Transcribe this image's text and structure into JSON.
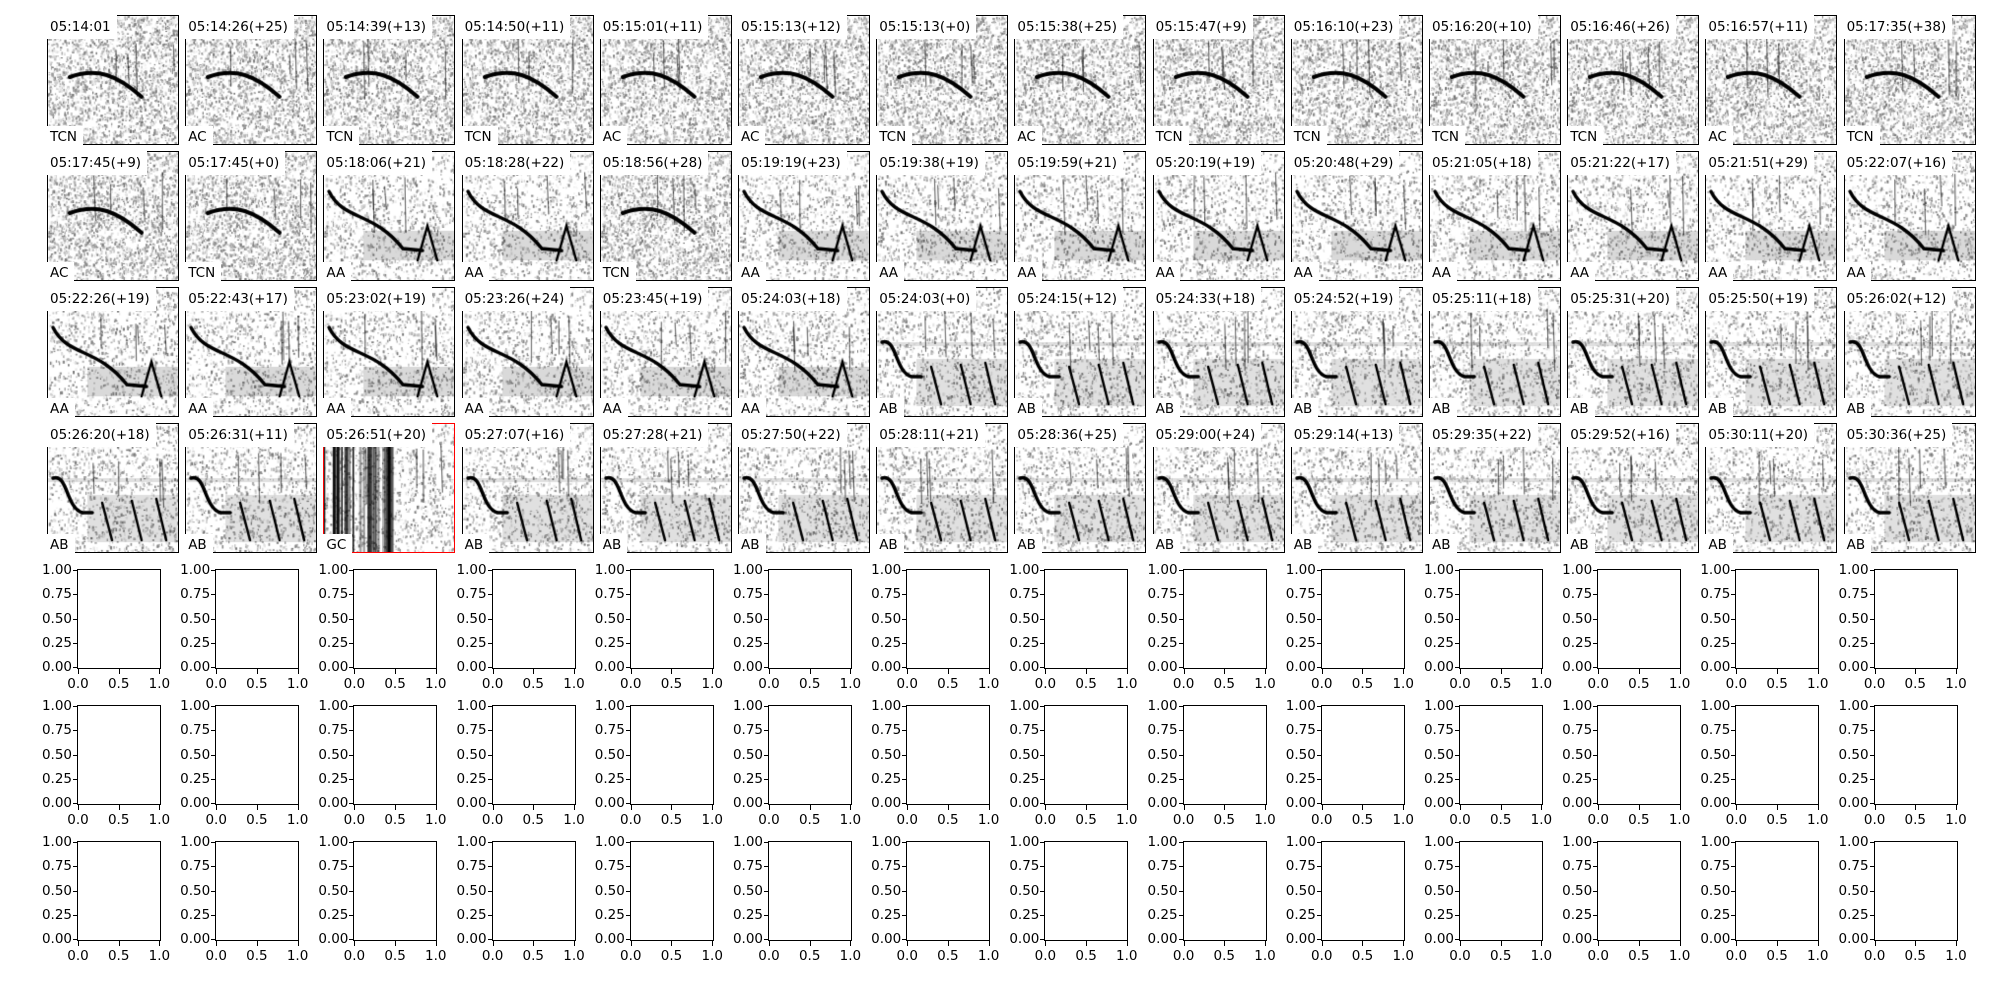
{
  "chart_data": {
    "type": "image-grid",
    "grid": {
      "rows": 7,
      "cols": 14
    },
    "highlight_color": "#ff0000",
    "panels": [
      {
        "title": "05:14:01",
        "label": "TCN"
      },
      {
        "title": "05:14:26(+25)",
        "label": "AC"
      },
      {
        "title": "05:14:39(+13)",
        "label": "TCN"
      },
      {
        "title": "05:14:50(+11)",
        "label": "TCN"
      },
      {
        "title": "05:15:01(+11)",
        "label": "AC"
      },
      {
        "title": "05:15:13(+12)",
        "label": "AC"
      },
      {
        "title": "05:15:13(+0)",
        "label": "TCN"
      },
      {
        "title": "05:15:38(+25)",
        "label": "AC"
      },
      {
        "title": "05:15:47(+9)",
        "label": "TCN"
      },
      {
        "title": "05:16:10(+23)",
        "label": "TCN"
      },
      {
        "title": "05:16:20(+10)",
        "label": "TCN"
      },
      {
        "title": "05:16:46(+26)",
        "label": "TCN"
      },
      {
        "title": "05:16:57(+11)",
        "label": "AC"
      },
      {
        "title": "05:17:35(+38)",
        "label": "TCN"
      },
      {
        "title": "05:17:45(+9)",
        "label": "AC"
      },
      {
        "title": "05:17:45(+0)",
        "label": "TCN"
      },
      {
        "title": "05:18:06(+21)",
        "label": "AA"
      },
      {
        "title": "05:18:28(+22)",
        "label": "AA"
      },
      {
        "title": "05:18:56(+28)",
        "label": "TCN"
      },
      {
        "title": "05:19:19(+23)",
        "label": "AA"
      },
      {
        "title": "05:19:38(+19)",
        "label": "AA"
      },
      {
        "title": "05:19:59(+21)",
        "label": "AA"
      },
      {
        "title": "05:20:19(+19)",
        "label": "AA"
      },
      {
        "title": "05:20:48(+29)",
        "label": "AA"
      },
      {
        "title": "05:21:05(+18)",
        "label": "AA"
      },
      {
        "title": "05:21:22(+17)",
        "label": "AA"
      },
      {
        "title": "05:21:51(+29)",
        "label": "AA"
      },
      {
        "title": "05:22:07(+16)",
        "label": "AA"
      },
      {
        "title": "05:22:26(+19)",
        "label": "AA"
      },
      {
        "title": "05:22:43(+17)",
        "label": "AA"
      },
      {
        "title": "05:23:02(+19)",
        "label": "AA"
      },
      {
        "title": "05:23:26(+24)",
        "label": "AA"
      },
      {
        "title": "05:23:45(+19)",
        "label": "AA"
      },
      {
        "title": "05:24:03(+18)",
        "label": "AA"
      },
      {
        "title": "05:24:03(+0)",
        "label": "AB"
      },
      {
        "title": "05:24:15(+12)",
        "label": "AB"
      },
      {
        "title": "05:24:33(+18)",
        "label": "AB"
      },
      {
        "title": "05:24:52(+19)",
        "label": "AB"
      },
      {
        "title": "05:25:11(+18)",
        "label": "AB"
      },
      {
        "title": "05:25:31(+20)",
        "label": "AB"
      },
      {
        "title": "05:25:50(+19)",
        "label": "AB"
      },
      {
        "title": "05:26:02(+12)",
        "label": "AB"
      },
      {
        "title": "05:26:20(+18)",
        "label": "AB"
      },
      {
        "title": "05:26:31(+11)",
        "label": "AB"
      },
      {
        "title": "05:26:51(+20)",
        "label": "GC",
        "highlighted": true
      },
      {
        "title": "05:27:07(+16)",
        "label": "AB"
      },
      {
        "title": "05:27:28(+21)",
        "label": "AB"
      },
      {
        "title": "05:27:50(+22)",
        "label": "AB"
      },
      {
        "title": "05:28:11(+21)",
        "label": "AB"
      },
      {
        "title": "05:28:36(+25)",
        "label": "AB"
      },
      {
        "title": "05:29:00(+24)",
        "label": "AB"
      },
      {
        "title": "05:29:14(+13)",
        "label": "AB"
      },
      {
        "title": "05:29:35(+22)",
        "label": "AB"
      },
      {
        "title": "05:29:52(+16)",
        "label": "AB"
      },
      {
        "title": "05:30:11(+20)",
        "label": "AB"
      },
      {
        "title": "05:30:36(+25)",
        "label": "AB"
      }
    ],
    "empty_axes": {
      "count": 42,
      "xlim": [
        0,
        1
      ],
      "ylim": [
        0,
        1
      ],
      "xticks": [
        "0.0",
        "0.5",
        "1.0"
      ],
      "yticks": [
        "0.00",
        "0.25",
        "0.50",
        "0.75",
        "1.00"
      ]
    }
  }
}
